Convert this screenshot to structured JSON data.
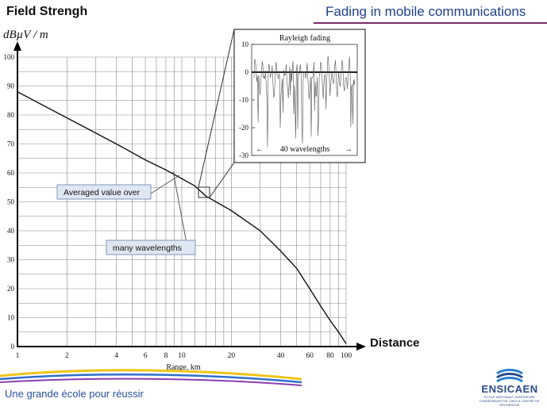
{
  "header": {
    "title": "Field Strengh",
    "unit_label": "dBµV / m",
    "slide_title": "Fading in mobile communications"
  },
  "chart_data": {
    "type": "line",
    "xscale": "log",
    "xlim": [
      1,
      100
    ],
    "ylim": [
      0,
      100
    ],
    "xlabel": "Range, km",
    "ylabel": "dBµV / m",
    "axis_x_name": "Distance",
    "x_ticks": [
      1,
      2,
      4,
      6,
      8,
      10,
      20,
      40,
      60,
      80,
      100
    ],
    "y_ticks": [
      0,
      10,
      20,
      30,
      40,
      50,
      60,
      70,
      80,
      90,
      100
    ],
    "grid": true,
    "series": [
      {
        "x": [
          1,
          2,
          4,
          6,
          8,
          10,
          12,
          14,
          20,
          30,
          40,
          50,
          60,
          70,
          80,
          90,
          100
        ],
        "y": [
          88,
          79,
          70,
          64.5,
          61,
          58,
          55.5,
          52,
          47,
          40,
          33,
          27,
          20,
          14,
          9,
          5,
          1
        ]
      }
    ],
    "annotations": [
      {
        "text": "Averaged value over"
      },
      {
        "text": "many wavelengths"
      }
    ],
    "inset": {
      "title": "Rayleigh fading",
      "ylim": [
        -30,
        10
      ],
      "y_ticks": [
        10,
        0,
        -10,
        -20,
        -30
      ],
      "x_caption": "40 wavelengths",
      "arrow_left": "←",
      "arrow_right": "→"
    }
  },
  "footer": {
    "tagline": "Une grande école pour réussir",
    "logo_text": "ENSICAEN",
    "logo_subtext": "ÉCOLE NATIONALE SUPÉRIEURE D'INGÉNIEURS DE CAEN & CENTRE DE RECHERCHE"
  },
  "colors": {
    "title_blue": "#1f3f8a",
    "rule": "#7a2a6a",
    "callout_fill": "#dfe7f3",
    "callout_border": "#7f95b8",
    "logo_blue": "#2a4a8a",
    "swoosh_yellow": "#f0c419",
    "swoosh_blue": "#2f6fd0",
    "swoosh_purple": "#8a3fb0"
  }
}
